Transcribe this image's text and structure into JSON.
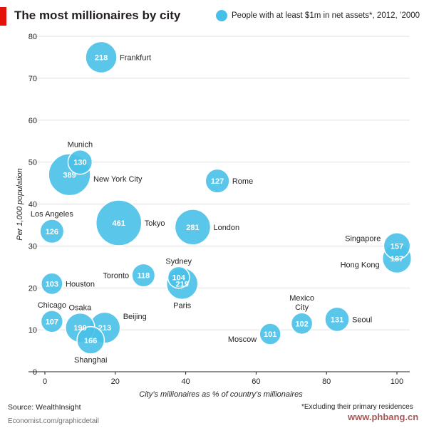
{
  "title": "The most millionaires by city",
  "legend_label": "People with at least $1m in net assets*, 2012, ’2000",
  "source": "Source: WealthInsight",
  "footnote": "*Excluding their primary residences",
  "credit": "Economist.com/graphicdetail",
  "watermark": "www.phbang.cn",
  "colors": {
    "bubble": "#47c0e8",
    "bubble_stroke": "#ffffff",
    "title_bar": "#e3120b",
    "grid": "#d5d5d5"
  },
  "chart_data": {
    "type": "scatter",
    "xlabel": "City’s millionaires as % of country’s millionaires",
    "ylabel": "Per 1,000 population",
    "xlim": [
      0,
      100
    ],
    "ylim": [
      0,
      80
    ],
    "x_ticks": [
      0,
      20,
      40,
      60,
      80,
      100
    ],
    "y_ticks": [
      0,
      10,
      20,
      30,
      40,
      50,
      60,
      70,
      80
    ],
    "grid": true,
    "size_label": "People with at least $1m in net assets*, 2012, ’2000",
    "points": [
      {
        "city": "Frankfurt",
        "x": 16,
        "y": 75,
        "value": 218
      },
      {
        "city": "New York City",
        "x": 7,
        "y": 47,
        "value": 389
      },
      {
        "city": "Munich",
        "x": 10,
        "y": 50,
        "value": 130
      },
      {
        "city": "Rome",
        "x": 49,
        "y": 45.5,
        "value": 127
      },
      {
        "city": "Los Angeles",
        "x": 2,
        "y": 33.5,
        "value": 126
      },
      {
        "city": "Tokyo",
        "x": 21,
        "y": 35.5,
        "value": 461
      },
      {
        "city": "London",
        "x": 42,
        "y": 34.5,
        "value": 281
      },
      {
        "city": "Singapore",
        "x": 100,
        "y": 30,
        "value": 157
      },
      {
        "city": "Hong Kong",
        "x": 100,
        "y": 27,
        "value": 187
      },
      {
        "city": "Toronto",
        "x": 28,
        "y": 23,
        "value": 118
      },
      {
        "city": "Sydney",
        "x": 38,
        "y": 22.5,
        "value": 104
      },
      {
        "city": "Paris",
        "x": 39,
        "y": 21,
        "value": 219
      },
      {
        "city": "Houston",
        "x": 2,
        "y": 21,
        "value": 103
      },
      {
        "city": "Chicago",
        "x": 2,
        "y": 12,
        "value": 107
      },
      {
        "city": "Osaka",
        "x": 10,
        "y": 10.5,
        "value": 190
      },
      {
        "city": "Beijing",
        "x": 17,
        "y": 10.5,
        "value": 213
      },
      {
        "city": "Shanghai",
        "x": 13,
        "y": 7.5,
        "value": 166
      },
      {
        "city": "Moscow",
        "x": 64,
        "y": 9,
        "value": 101
      },
      {
        "city": "Mexico City",
        "x": 73,
        "y": 11.5,
        "value": 102
      },
      {
        "city": "Seoul",
        "x": 83,
        "y": 12.5,
        "value": 131
      }
    ]
  }
}
